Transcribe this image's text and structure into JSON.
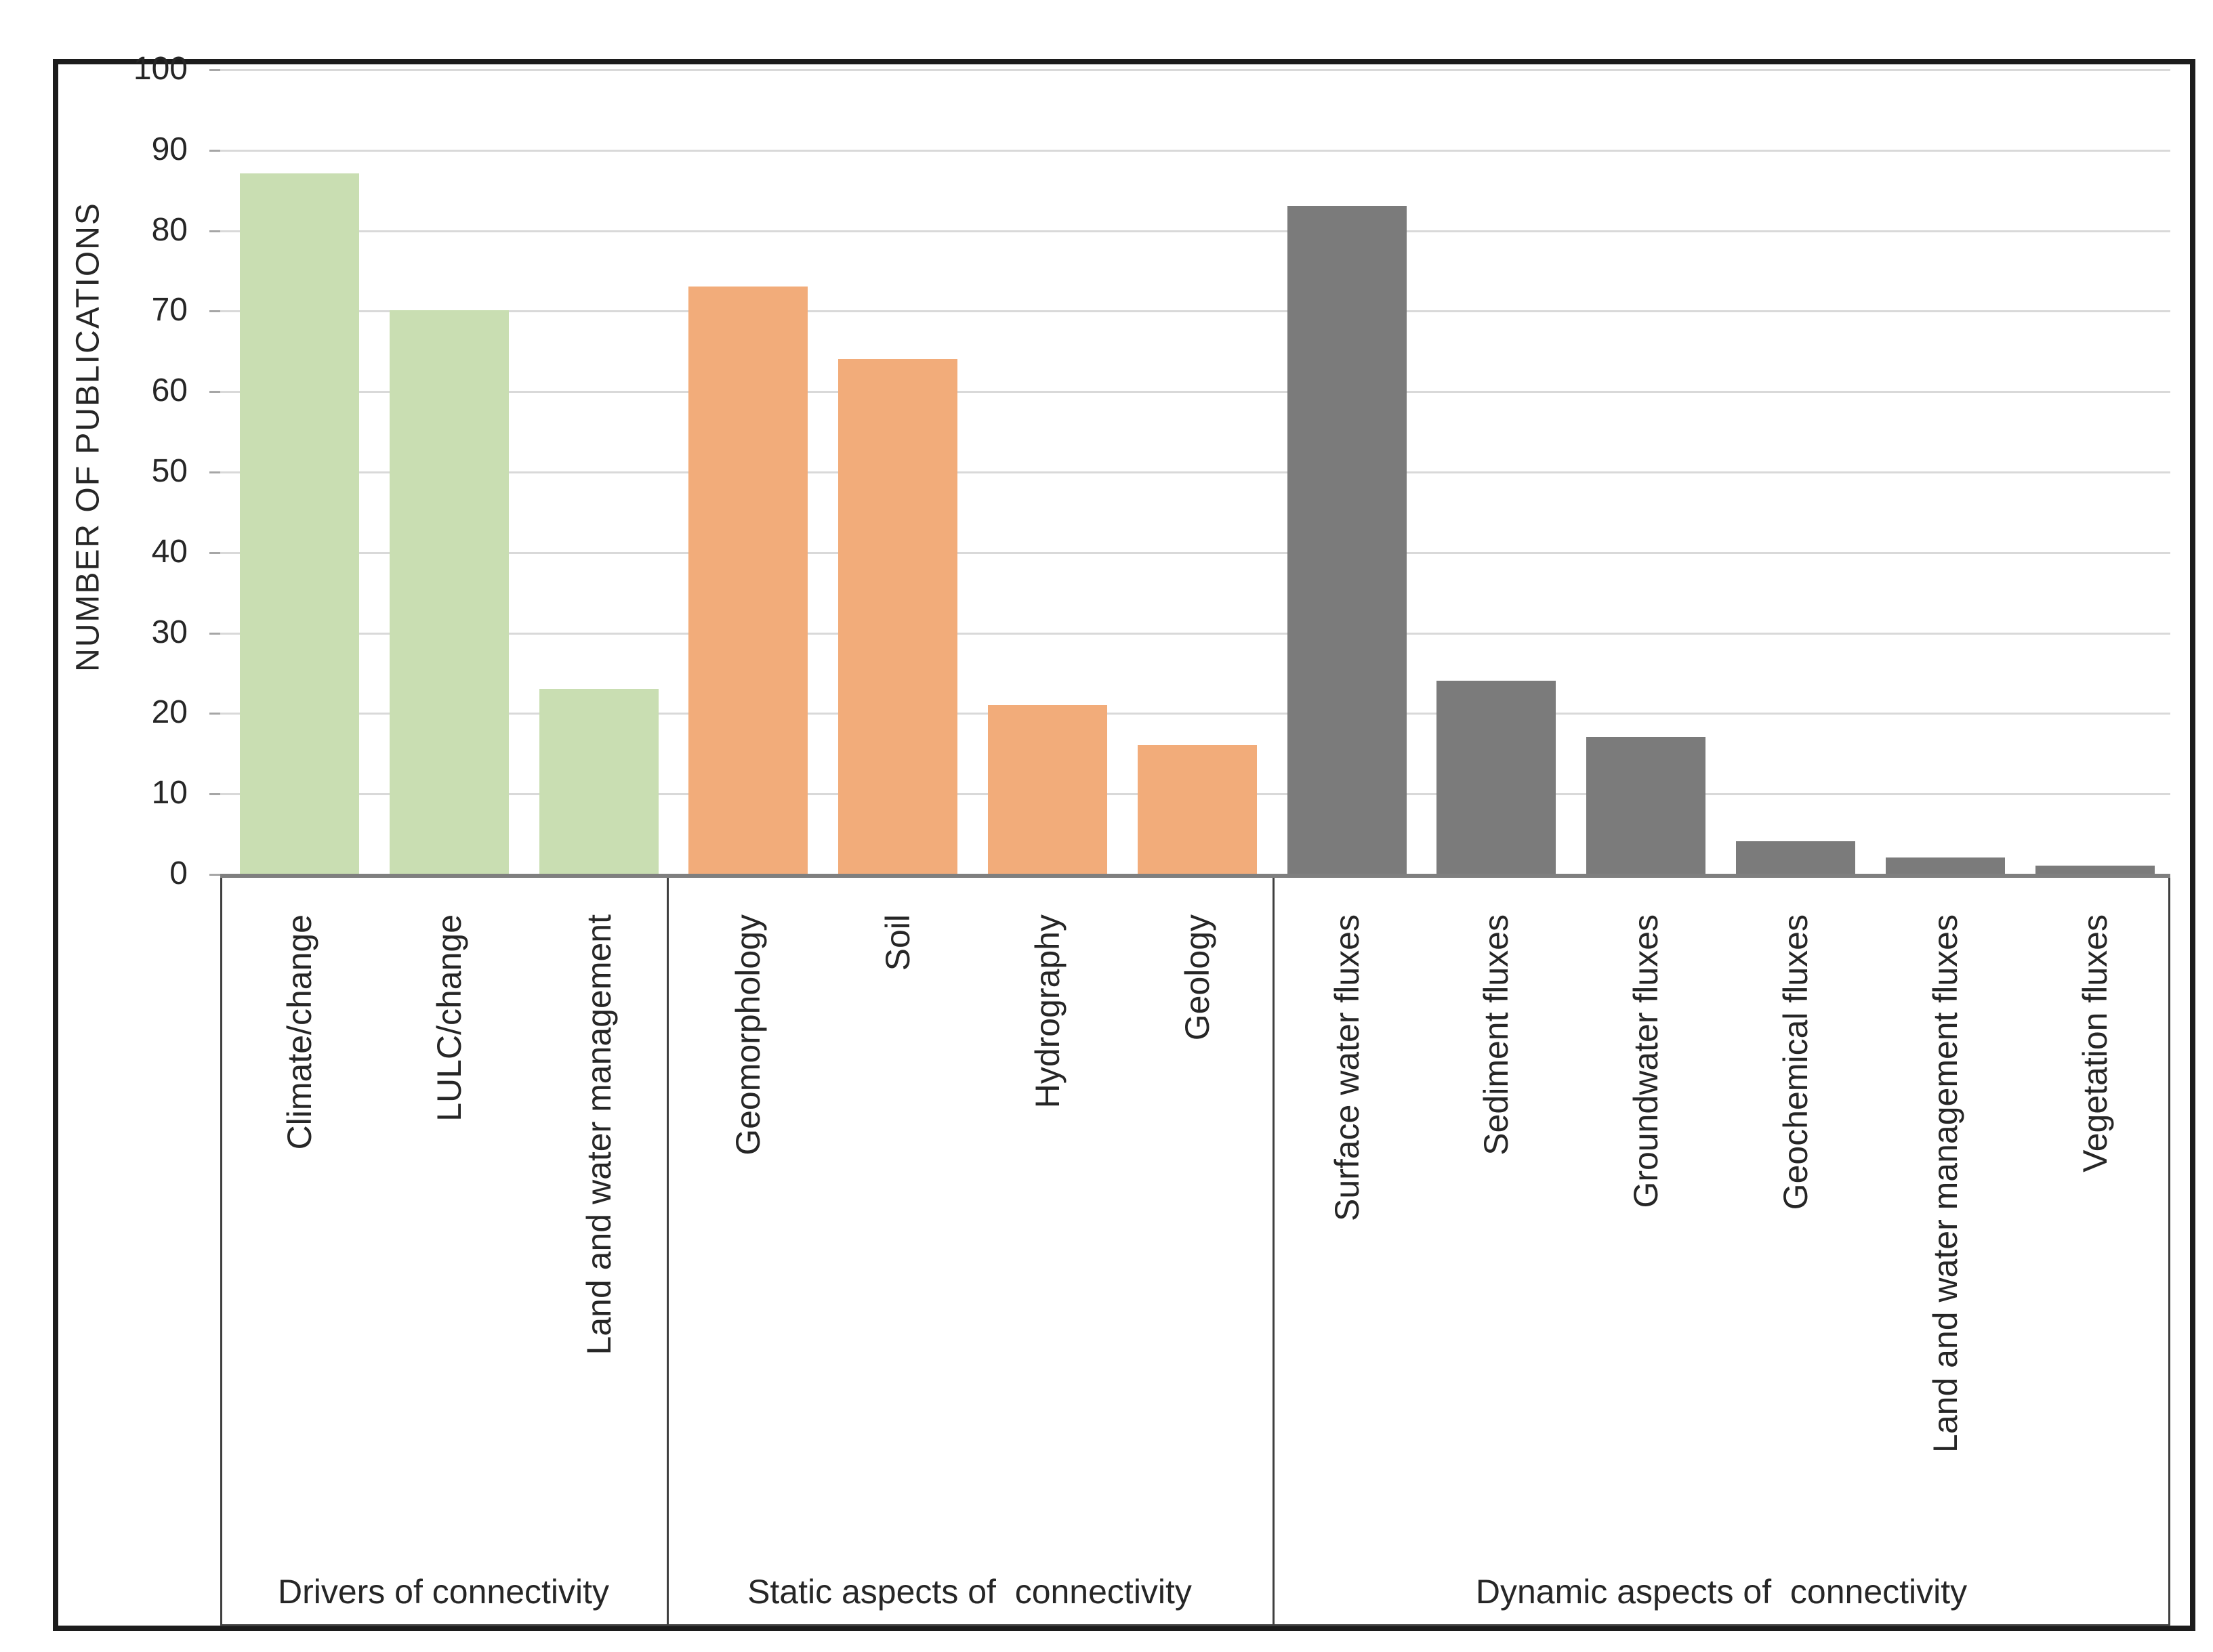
{
  "colors": {
    "drivers_green": "#c9deb2",
    "static_orange": "#f2ac7a",
    "dynamic_gray": "#7b7b7b",
    "gridline": "#d9d9d9",
    "axis_line": "#7f7f7f",
    "text": "#262626"
  },
  "chart_data": {
    "type": "bar",
    "title": "",
    "xlabel": "",
    "ylabel": "NUMBER OF PUBLICATIONS",
    "ylim": [
      0,
      100
    ],
    "yticks": [
      0,
      10,
      20,
      30,
      40,
      50,
      60,
      70,
      80,
      90,
      100
    ],
    "grid": true,
    "legend": "none",
    "groups": [
      {
        "label": "Drivers of connectivity",
        "color": "#c9deb2",
        "categories": [
          "Climate/change",
          "LULC/change",
          "Land and water management"
        ],
        "values": [
          87,
          70,
          23
        ]
      },
      {
        "label": "Static aspects of  connectivity",
        "color": "#f2ac7a",
        "categories": [
          "Geomorphology",
          "Soil",
          "Hydrography",
          "Geology"
        ],
        "values": [
          73,
          64,
          21,
          16
        ]
      },
      {
        "label": "Dynamic aspects of  connectivity",
        "color": "#7b7b7b",
        "categories": [
          "Surface water fluxes",
          "Sediment fluxes",
          "Groundwater fluxes",
          "Geochemical fluxes",
          "Land and water management fluxes",
          "Vegetation fluxes"
        ],
        "values": [
          83,
          24,
          17,
          4,
          2,
          1
        ]
      }
    ]
  }
}
